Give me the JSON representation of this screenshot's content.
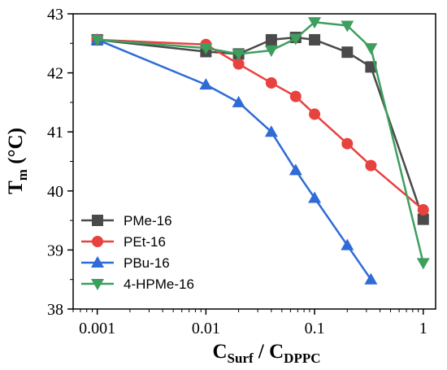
{
  "chart_data": {
    "type": "line",
    "xscale": "log",
    "xlim": [
      0.0006,
      1.3
    ],
    "ylim": [
      38,
      43
    ],
    "x_ticks": [
      0.001,
      0.01,
      0.1,
      1
    ],
    "x_tick_labels": [
      "0.001",
      "0.01",
      "0.1",
      "1"
    ],
    "y_ticks": [
      38,
      39,
      40,
      41,
      42,
      43
    ],
    "y_tick_labels": [
      "38",
      "39",
      "40",
      "41",
      "42",
      "43"
    ],
    "xlabel": {
      "main": "C",
      "sub1": "Surf",
      "sep": " / C",
      "sub2": "DPPC"
    },
    "ylabel": {
      "main": "T",
      "sub": "m",
      "unit": " (°C)"
    },
    "legend_position": "lower-left",
    "series": [
      {
        "name": "PMe-16",
        "color": "#4a4a4a",
        "marker": "square",
        "x": [
          0.001,
          0.01,
          0.02,
          0.04,
          0.067,
          0.1,
          0.2,
          0.33,
          1
        ],
        "y": [
          42.56,
          42.36,
          42.32,
          42.56,
          42.6,
          42.56,
          42.35,
          42.1,
          39.52
        ]
      },
      {
        "name": "PEt-16",
        "color": "#e8423f",
        "marker": "circle",
        "x": [
          0.001,
          0.01,
          0.02,
          0.04,
          0.067,
          0.1,
          0.2,
          0.33,
          1
        ],
        "y": [
          42.56,
          42.48,
          42.15,
          41.83,
          41.6,
          41.3,
          40.8,
          40.43,
          39.68
        ]
      },
      {
        "name": "PBu-16",
        "color": "#2e6bd6",
        "marker": "triangle-up",
        "x": [
          0.001,
          0.01,
          0.02,
          0.04,
          0.067,
          0.1,
          0.2,
          0.33
        ],
        "y": [
          42.56,
          41.8,
          41.5,
          41.0,
          40.35,
          39.88,
          39.08,
          38.5
        ]
      },
      {
        "name": "4-HPMe-16",
        "color": "#3e9e5e",
        "marker": "triangle-down",
        "x": [
          0.001,
          0.01,
          0.02,
          0.04,
          0.067,
          0.1,
          0.2,
          0.33,
          1
        ],
        "y": [
          42.56,
          42.42,
          42.32,
          42.38,
          42.58,
          42.86,
          42.8,
          42.42,
          38.78
        ]
      }
    ]
  }
}
